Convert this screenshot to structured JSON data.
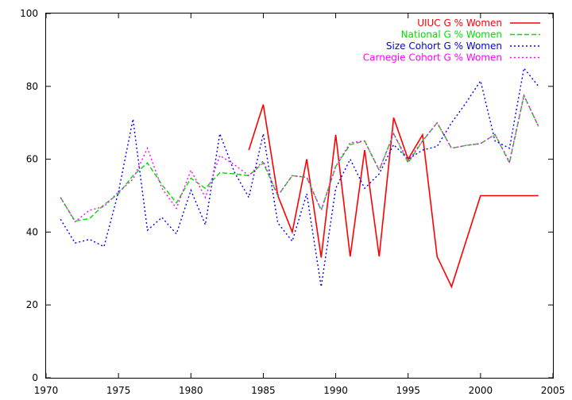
{
  "chart_data": {
    "type": "line",
    "title": "",
    "xlabel": "",
    "ylabel": "",
    "xlim": [
      1970,
      2005
    ],
    "ylim": [
      0,
      100
    ],
    "x_ticks": [
      1970,
      1975,
      1980,
      1985,
      1990,
      1995,
      2000,
      2005
    ],
    "y_ticks": [
      0,
      20,
      40,
      60,
      80,
      100
    ],
    "grid": false,
    "legend_position": "top-right",
    "series": [
      {
        "name": "UIUC G % Women",
        "color": "#ff0000",
        "dash": "solid",
        "x": [
          1984,
          1985,
          1986,
          1987,
          1988,
          1989,
          1990,
          1991,
          1992,
          1993,
          1994,
          1995,
          1996,
          1997,
          1998,
          2000,
          2001,
          2002,
          2003,
          2004
        ],
        "values": [
          62.5,
          75,
          50,
          40,
          60,
          33,
          66.7,
          33.3,
          62.5,
          33.3,
          71.4,
          60,
          66.7,
          33.3,
          25,
          50,
          50,
          50,
          50,
          50
        ]
      },
      {
        "name": "National G % Women",
        "color": "#00dd00",
        "dash": "dashed",
        "x": [
          1971,
          1972,
          1973,
          1974,
          1975,
          1976,
          1977,
          1978,
          1979,
          1980,
          1981,
          1982,
          1983,
          1984,
          1985,
          1986,
          1987,
          1988,
          1989,
          1990,
          1991,
          1992,
          1993,
          1994,
          1995,
          1996,
          1997,
          1998,
          1999,
          2000,
          2001,
          2002,
          2003,
          2004
        ],
        "values": [
          49.5,
          43,
          43.7,
          47.5,
          50.5,
          55.5,
          59,
          53,
          48,
          54.8,
          52,
          56.3,
          56,
          55.5,
          59,
          50,
          55.5,
          55,
          46,
          58,
          64,
          65,
          57,
          67,
          59,
          65,
          70,
          63,
          63.8,
          64.3,
          66.8,
          59,
          77.5,
          69
        ]
      },
      {
        "name": "Size Cohort G % Women",
        "color": "#0000ff",
        "dash": "dotted",
        "x": [
          1971,
          1972,
          1973,
          1974,
          1975,
          1976,
          1977,
          1978,
          1979,
          1980,
          1981,
          1982,
          1983,
          1984,
          1985,
          1986,
          1987,
          1988,
          1989,
          1990,
          1991,
          1992,
          1993,
          1994,
          1995,
          1996,
          1997,
          1998,
          1999,
          2000,
          2001,
          2002,
          2003,
          2004
        ],
        "values": [
          43.5,
          37,
          38,
          36,
          51,
          71,
          40.5,
          44,
          39.5,
          51.5,
          42,
          67,
          56.5,
          49.5,
          67,
          42.5,
          37.5,
          50.5,
          25,
          52,
          60,
          52,
          56,
          64,
          60,
          62.5,
          63.5,
          70,
          75.5,
          81.5,
          65,
          63,
          85,
          80
        ]
      },
      {
        "name": "Carnegie Cohort G % Women",
        "color": "#ff00ff",
        "dash": "dotted",
        "x": [
          1971,
          1972,
          1973,
          1974,
          1975,
          1976,
          1977,
          1978,
          1979,
          1980,
          1981,
          1982,
          1983,
          1984,
          1985,
          1986,
          1987,
          1988,
          1989,
          1990,
          1991,
          1992,
          1993,
          1994,
          1995,
          1996,
          1997,
          1998,
          1999,
          2000,
          2001,
          2002,
          2003,
          2004
        ],
        "values": [
          49.5,
          42.8,
          46,
          47,
          51,
          54.5,
          63,
          52,
          46.5,
          57,
          49.5,
          61,
          58.5,
          55.5,
          59.5,
          50,
          55.5,
          55,
          46,
          58,
          64.5,
          65,
          57,
          67,
          59.5,
          65,
          70,
          63,
          63.8,
          64.3,
          66.8,
          59.3,
          77.5,
          69
        ]
      }
    ]
  }
}
